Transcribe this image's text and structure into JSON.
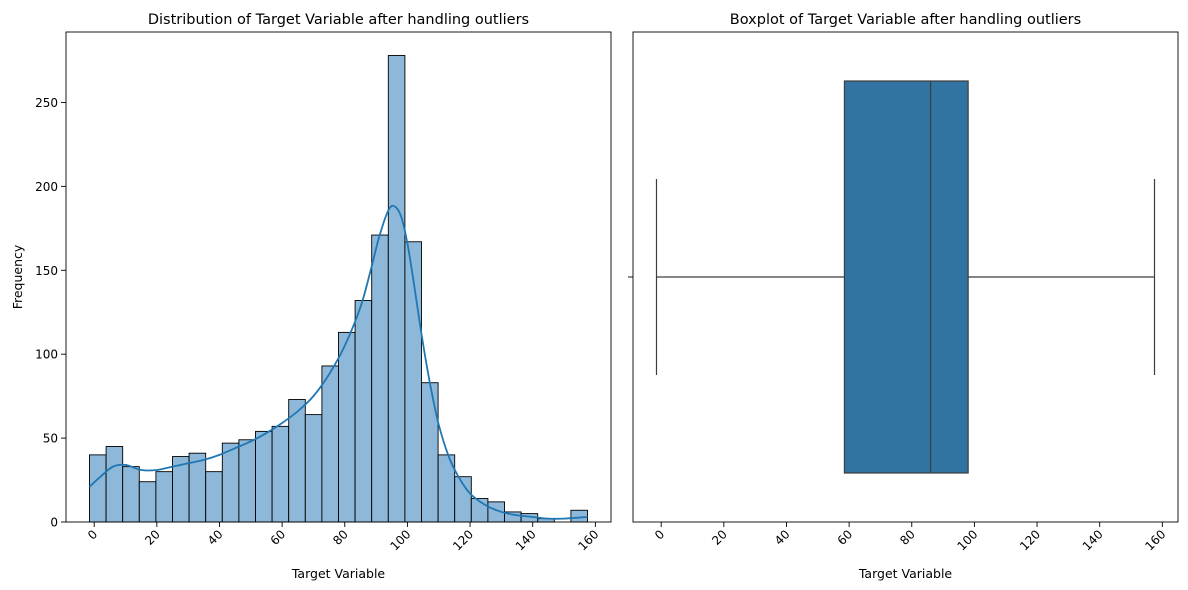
{
  "chart_data": [
    {
      "type": "bar",
      "subtype": "histogram_with_kde",
      "title": "Distribution of Target Variable after handling outliers",
      "xlabel": "Target Variable",
      "ylabel": "Frequency",
      "xlim": [
        -9,
        165
      ],
      "ylim": [
        0,
        292
      ],
      "x_ticks": [
        0,
        20,
        40,
        60,
        80,
        100,
        120,
        140,
        160
      ],
      "x_tick_labels": [
        "0",
        "20",
        "40",
        "60",
        "80",
        "100",
        "120",
        "140",
        "160"
      ],
      "y_ticks": [
        0,
        50,
        100,
        150,
        200,
        250
      ],
      "y_tick_labels": [
        "0",
        "50",
        "100",
        "150",
        "200",
        "250"
      ],
      "tick_label_rotation_x": 45,
      "grid": false,
      "bar_color": "#8db8d9",
      "bar_edge_color": "#000000",
      "kde_color": "#1f77b4",
      "bin_edges": [
        -1.5,
        3.8,
        9.1,
        14.4,
        19.7,
        25.0,
        30.3,
        35.6,
        40.9,
        46.2,
        51.5,
        56.8,
        62.1,
        67.4,
        72.7,
        78.0,
        83.3,
        88.6,
        93.9,
        99.2,
        104.5,
        109.8,
        115.1,
        120.4,
        125.7,
        131.0,
        136.3,
        141.6,
        146.9,
        152.2,
        157.5
      ],
      "counts": [
        40,
        45,
        33,
        24,
        30,
        39,
        41,
        30,
        47,
        49,
        54,
        57,
        73,
        64,
        93,
        113,
        132,
        171,
        278,
        167,
        83,
        40,
        27,
        14,
        12,
        6,
        5,
        2,
        0,
        7
      ],
      "kde": {
        "x": [
          -1.5,
          2,
          6,
          10,
          15,
          20,
          25,
          30,
          35,
          40,
          45,
          50,
          55,
          60,
          65,
          70,
          75,
          80,
          85,
          88,
          91,
          94,
          96,
          98,
          100,
          102,
          104,
          106,
          108,
          110,
          113,
          116,
          120,
          125,
          130,
          135,
          140,
          145,
          150,
          157.5
        ],
        "y": [
          21,
          27,
          33,
          34,
          31,
          31,
          33,
          35,
          37,
          40,
          44,
          48,
          53,
          59,
          66,
          75,
          88,
          105,
          128,
          148,
          170,
          186,
          188,
          182,
          166,
          143,
          118,
          95,
          75,
          58,
          40,
          28,
          17,
          10,
          6,
          4,
          3,
          2,
          2,
          3
        ]
      }
    },
    {
      "type": "box",
      "title": "Boxplot of Target Variable after handling outliers",
      "xlabel": "Target Variable",
      "xlim": [
        -9,
        165
      ],
      "x_ticks": [
        0,
        20,
        40,
        60,
        80,
        100,
        120,
        140,
        160
      ],
      "x_tick_labels": [
        "0",
        "20",
        "40",
        "60",
        "80",
        "100",
        "120",
        "140",
        "160"
      ],
      "tick_label_rotation_x": 45,
      "grid": false,
      "box_color": "#3274a1",
      "line_color": "#3d3d3d",
      "whisker_low": -1.5,
      "q1": 58.5,
      "median": 86,
      "q3": 98,
      "whisker_high": 157.5
    }
  ]
}
